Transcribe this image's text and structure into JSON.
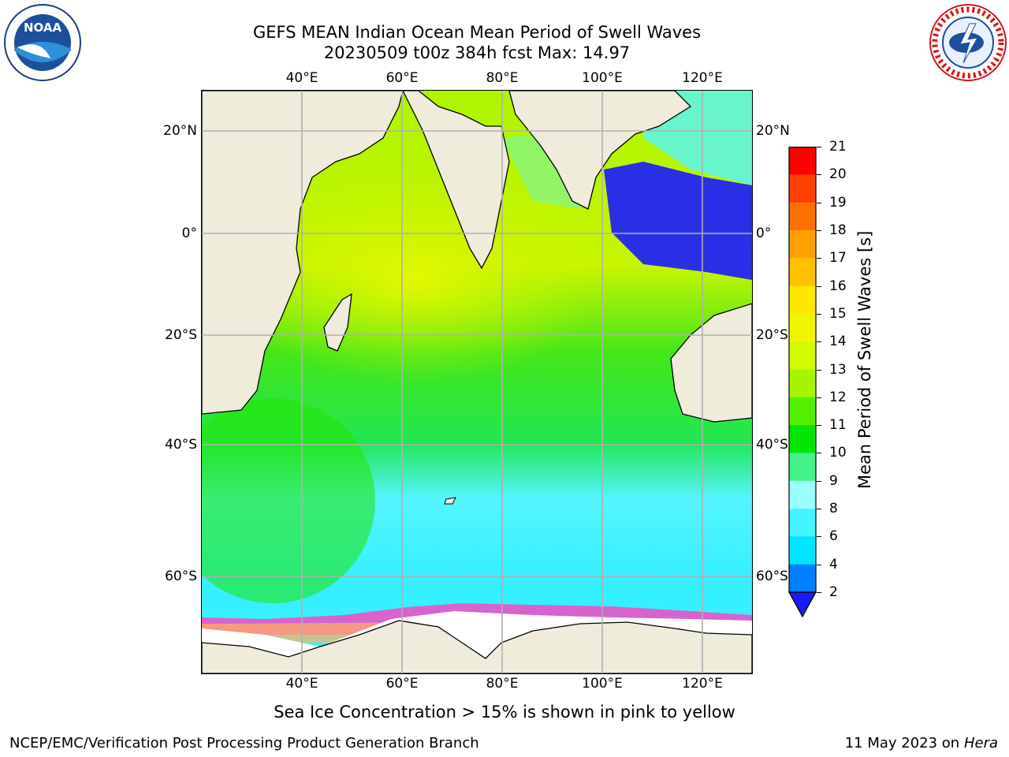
{
  "title": {
    "line1": "GEFS MEAN Indian Ocean Mean Period of Swell Waves",
    "line2": "20230509 t00z 384h fcst   Max: 14.97"
  },
  "map": {
    "lon_ticks": [
      "40°E",
      "60°E",
      "80°E",
      "100°E",
      "120°E"
    ],
    "lat_ticks": [
      "20°N",
      "0°",
      "20°S",
      "40°S",
      "60°S"
    ],
    "lon_range": [
      20,
      130
    ],
    "lat_range": [
      -72,
      28
    ]
  },
  "colorbar": {
    "label": "Mean Period of Swell Waves [s]",
    "ticks": [
      "2",
      "4",
      "6",
      "8",
      "9",
      "10",
      "11",
      "12",
      "13",
      "14",
      "15",
      "16",
      "17",
      "18",
      "19",
      "20",
      "21"
    ],
    "colors": [
      "#1a1aff",
      "#0080ff",
      "#00e5ff",
      "#44f5ff",
      "#99ffff",
      "#44f28c",
      "#00e600",
      "#55f000",
      "#a6f500",
      "#d4fa00",
      "#f0f500",
      "#ffe800",
      "#ffc000",
      "#ffa000",
      "#ff7000",
      "#ff4000",
      "#ff0000"
    ]
  },
  "sea_ice_note": "Sea Ice Concentration > 15% is shown in pink to yellow",
  "footer": {
    "left": "NCEP/EMC/Verification Post Processing Product Generation Branch",
    "right_date": "11 May 2023 on",
    "right_host": "Hera"
  },
  "logos": {
    "noaa_text": "NOAA",
    "nws_text": "NATIONAL WEATHER SERVICE"
  },
  "colors": {
    "land": "#efecdc",
    "grid": "#b0b0b0",
    "sea_ice_edge": "#ff40c0"
  }
}
